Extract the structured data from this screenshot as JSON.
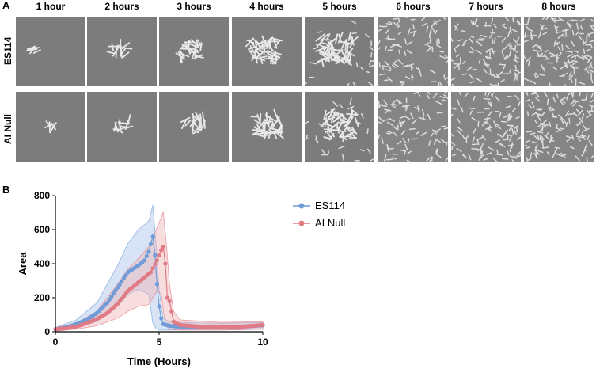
{
  "panel_a": {
    "letter": "A",
    "time_labels": [
      "1 hour",
      "2 hours",
      "3 hours",
      "4 hours",
      "5 hours",
      "6 hours",
      "7 hours",
      "8 hours"
    ],
    "strains": [
      "ES114",
      "AI Null"
    ],
    "micrograph_description": "DIC micrographs of bacterial cells growing over 8 hours"
  },
  "panel_b": {
    "letter": "B"
  },
  "chart_data": {
    "type": "line",
    "xlabel": "Time (Hours)",
    "ylabel": "Area",
    "xlim": [
      0,
      10
    ],
    "ylim": [
      0,
      800
    ],
    "xticks": [
      0,
      5,
      10
    ],
    "yticks": [
      0,
      200,
      400,
      600,
      800
    ],
    "legend_position": "right",
    "series": [
      {
        "name": "ES114",
        "color": "#6f9bd8",
        "band_color": "#a9c3e8",
        "mean": [
          [
            0,
            15
          ],
          [
            0.5,
            25
          ],
          [
            1,
            45
          ],
          [
            1.5,
            70
          ],
          [
            2,
            110
          ],
          [
            2.5,
            170
          ],
          [
            3,
            260
          ],
          [
            3.5,
            350
          ],
          [
            4,
            390
          ],
          [
            4.3,
            420
          ],
          [
            4.5,
            470
          ],
          [
            4.7,
            560
          ],
          [
            4.8,
            450
          ],
          [
            4.9,
            280
          ],
          [
            5.0,
            150
          ],
          [
            5.1,
            80
          ],
          [
            5.2,
            45
          ],
          [
            5.5,
            35
          ],
          [
            6,
            30
          ],
          [
            7,
            28
          ],
          [
            8,
            28
          ],
          [
            9,
            30
          ],
          [
            10,
            38
          ]
        ],
        "upper": [
          [
            0,
            25
          ],
          [
            1,
            70
          ],
          [
            2,
            170
          ],
          [
            3,
            390
          ],
          [
            3.5,
            520
          ],
          [
            4,
            600
          ],
          [
            4.5,
            650
          ],
          [
            4.7,
            745
          ],
          [
            4.85,
            520
          ],
          [
            5.0,
            250
          ],
          [
            5.2,
            80
          ],
          [
            5.5,
            60
          ],
          [
            6,
            55
          ],
          [
            8,
            50
          ],
          [
            10,
            55
          ]
        ],
        "lower": [
          [
            0,
            5
          ],
          [
            1,
            25
          ],
          [
            2,
            60
          ],
          [
            3,
            150
          ],
          [
            3.5,
            220
          ],
          [
            4,
            250
          ],
          [
            4.5,
            220
          ],
          [
            4.7,
            50
          ],
          [
            4.85,
            20
          ],
          [
            5.0,
            10
          ],
          [
            5.5,
            10
          ],
          [
            6,
            10
          ],
          [
            8,
            10
          ],
          [
            10,
            15
          ]
        ]
      },
      {
        "name": "AI Null",
        "color": "#e07a85",
        "band_color": "#f0b3b9",
        "mean": [
          [
            0,
            15
          ],
          [
            0.5,
            20
          ],
          [
            1,
            30
          ],
          [
            1.5,
            50
          ],
          [
            2,
            75
          ],
          [
            2.5,
            110
          ],
          [
            3,
            165
          ],
          [
            3.5,
            240
          ],
          [
            4,
            290
          ],
          [
            4.3,
            320
          ],
          [
            4.6,
            350
          ],
          [
            4.9,
            420
          ],
          [
            5.1,
            480
          ],
          [
            5.2,
            500
          ],
          [
            5.3,
            400
          ],
          [
            5.4,
            200
          ],
          [
            5.5,
            180
          ],
          [
            5.6,
            120
          ],
          [
            5.7,
            60
          ],
          [
            6,
            40
          ],
          [
            7,
            30
          ],
          [
            8,
            28
          ],
          [
            9,
            30
          ],
          [
            10,
            40
          ]
        ],
        "upper": [
          [
            0,
            25
          ],
          [
            1,
            50
          ],
          [
            2,
            120
          ],
          [
            3,
            280
          ],
          [
            3.5,
            370
          ],
          [
            4,
            430
          ],
          [
            4.5,
            500
          ],
          [
            5.0,
            640
          ],
          [
            5.2,
            705
          ],
          [
            5.35,
            520
          ],
          [
            5.5,
            280
          ],
          [
            5.7,
            120
          ],
          [
            6,
            70
          ],
          [
            8,
            55
          ],
          [
            10,
            60
          ]
        ],
        "lower": [
          [
            0,
            5
          ],
          [
            1,
            15
          ],
          [
            2,
            35
          ],
          [
            3,
            80
          ],
          [
            3.5,
            120
          ],
          [
            4,
            150
          ],
          [
            4.5,
            160
          ],
          [
            4.9,
            240
          ],
          [
            5.1,
            220
          ],
          [
            5.3,
            40
          ],
          [
            5.5,
            15
          ],
          [
            6,
            10
          ],
          [
            8,
            10
          ],
          [
            10,
            15
          ]
        ]
      }
    ]
  }
}
